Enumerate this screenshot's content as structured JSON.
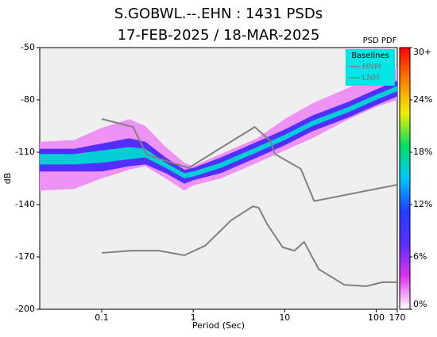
{
  "chart_data": {
    "type": "psd_pdf",
    "title": "S.GOBWL.--.EHN : 1431 PSDs",
    "subtitle": "17-FEB-2025 / 18-MAR-2025",
    "x_label": "Period (Sec)",
    "y_label": "dB",
    "x_log": true,
    "xlim": [
      0.021,
      170
    ],
    "xticks": [
      0.1,
      1,
      10,
      100,
      170
    ],
    "ylim": [
      -200,
      -50
    ],
    "yticks": [
      -200,
      -170,
      -140,
      -110,
      -80,
      -50
    ],
    "colorbar_title": "PSD PDF",
    "clim": [
      0,
      30
    ],
    "cticks": [
      {
        "value": 0,
        "label": "0%"
      },
      {
        "value": 6,
        "label": "6%"
      },
      {
        "value": 12,
        "label": "12%"
      },
      {
        "value": 18,
        "label": "18%"
      },
      {
        "value": 24,
        "label": "24%"
      },
      {
        "value": 30,
        "label": "30+"
      }
    ],
    "colormap": [
      "#ffffff",
      "#e033ee",
      "#5a2dff",
      "#1f3cff",
      "#00c8ff",
      "#00e060",
      "#f0f000",
      "#ff8000",
      "#ff0000"
    ],
    "pdf": [
      {
        "level": 2,
        "periods": [
          0.021,
          0.05,
          0.1,
          0.2,
          0.3,
          0.5,
          0.8,
          1,
          2,
          5,
          10,
          20,
          50,
          100,
          170
        ],
        "high": [
          -104,
          -103,
          -96,
          -91,
          -95,
          -107,
          -116,
          -118,
          -111,
          -102,
          -91,
          -82,
          -73,
          -66,
          -61
        ],
        "low": [
          -132,
          -131,
          -125,
          -120,
          -118,
          -125,
          -132,
          -129,
          -125,
          -116,
          -109,
          -102,
          -91,
          -84,
          -80
        ]
      },
      {
        "level": 8,
        "periods": [
          0.021,
          0.05,
          0.1,
          0.2,
          0.3,
          0.5,
          0.8,
          1,
          2,
          5,
          10,
          20,
          50,
          100,
          170
        ],
        "high": [
          -108,
          -108,
          -105,
          -102,
          -104,
          -113,
          -120,
          -119,
          -113,
          -104,
          -97,
          -89,
          -81,
          -74,
          -69
        ],
        "low": [
          -121,
          -121,
          -121,
          -118,
          -117,
          -122,
          -128,
          -126,
          -122,
          -113,
          -106,
          -98,
          -90,
          -83,
          -78
        ]
      },
      {
        "level": 16,
        "periods": [
          0.021,
          0.05,
          0.1,
          0.2,
          0.3,
          0.5,
          0.8,
          1,
          2,
          5,
          10,
          20,
          50,
          100,
          170
        ],
        "high": [
          -111,
          -111,
          -109,
          -107,
          -108,
          -116,
          -122,
          -121,
          -116,
          -107,
          -100,
          -92,
          -84,
          -77,
          -72
        ],
        "low": [
          -117,
          -117,
          -116,
          -114,
          -113,
          -119,
          -125,
          -124,
          -119,
          -110,
          -103,
          -95,
          -87,
          -80,
          -75
        ]
      }
    ],
    "legend_title": "Baselines",
    "legend": "upper right",
    "series": [
      {
        "name": "HNM",
        "color": "#808080",
        "x": [
          0.1,
          0.22,
          0.31,
          0.89,
          4.7,
          7,
          7.8,
          15,
          21,
          170
        ],
        "values": [
          -90.9,
          -95.5,
          -111.4,
          -119,
          -95.5,
          -103.6,
          -111,
          -119.5,
          -138,
          -128.6
        ]
      },
      {
        "name": "LNM",
        "color": "#808080",
        "x": [
          0.1,
          0.21,
          0.42,
          0.8,
          1.35,
          2.6,
          4.5,
          5.2,
          6.4,
          9.5,
          12.8,
          16.3,
          23.5,
          44.8,
          78,
          117,
          170
        ],
        "values": [
          -167.7,
          -166.4,
          -166.4,
          -169.1,
          -163.6,
          -149,
          -141,
          -141.8,
          -151,
          -164.5,
          -166.4,
          -161.4,
          -177,
          -186,
          -186.8,
          -184.5,
          -184.5
        ]
      }
    ]
  }
}
